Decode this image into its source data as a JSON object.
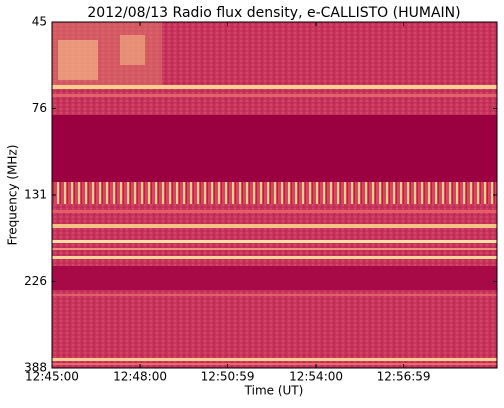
{
  "chart_data": {
    "type": "spectrogram",
    "title": "2012/08/13  Radio flux density, e-CALLISTO (HUMAIN)",
    "x_label": "Time (UT)",
    "y_label": "Frequency (MHz)",
    "xlim": [
      45900,
      46810
    ],
    "xticks": [
      {
        "value": 45900,
        "label": "12:45:00"
      },
      {
        "value": 46080,
        "label": "12:48:00"
      },
      {
        "value": 46259,
        "label": "12:50:59"
      },
      {
        "value": 46440,
        "label": "12:54:00"
      },
      {
        "value": 46619,
        "label": "12:56:59"
      }
    ],
    "ylim": [
      0,
      4
    ],
    "yticks": [
      {
        "value": 0,
        "label": "45"
      },
      {
        "value": 1,
        "label": "76"
      },
      {
        "value": 2,
        "label": "131"
      },
      {
        "value": 3,
        "label": "226"
      },
      {
        "value": 4,
        "label": "388"
      }
    ]
  }
}
